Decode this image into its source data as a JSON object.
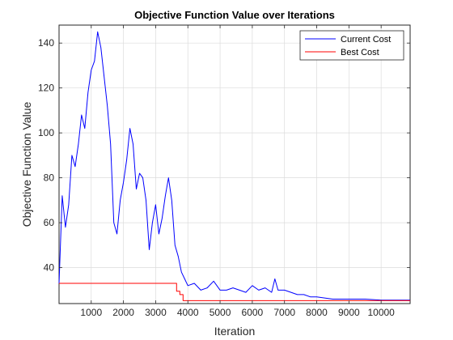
{
  "chart_data": {
    "type": "line",
    "title": "Objective Function Value over Iterations",
    "xlabel": "Iteration",
    "ylabel": "Objective Function Value",
    "xlim": [
      1,
      10900
    ],
    "ylim": [
      24,
      148
    ],
    "xticks": [
      1000,
      2000,
      3000,
      4000,
      5000,
      6000,
      7000,
      8000,
      9000,
      10000
    ],
    "yticks": [
      40,
      60,
      80,
      100,
      120,
      140
    ],
    "xtick_labels": [
      "1000",
      "2000",
      "3000",
      "4000",
      "5000",
      "6000",
      "7000",
      "8000",
      "9000",
      "10000"
    ],
    "ytick_labels": [
      "40",
      "60",
      "80",
      "100",
      "120",
      "140"
    ],
    "grid": true,
    "legend_position": "top-right",
    "colors": {
      "current": "#0000ff",
      "best": "#ff0000",
      "grid": "#dcdcdc",
      "axis": "#262626"
    },
    "series": [
      {
        "name": "Current Cost",
        "color": "#0000ff",
        "x": [
          1,
          100,
          200,
          300,
          400,
          500,
          600,
          700,
          800,
          900,
          1000,
          1100,
          1200,
          1300,
          1400,
          1500,
          1600,
          1700,
          1800,
          1900,
          2000,
          2100,
          2200,
          2300,
          2400,
          2500,
          2600,
          2700,
          2800,
          2900,
          3000,
          3100,
          3200,
          3300,
          3400,
          3500,
          3600,
          3700,
          3800,
          3900,
          4000,
          4200,
          4400,
          4600,
          4800,
          5000,
          5200,
          5400,
          5600,
          5800,
          6000,
          6200,
          6400,
          6600,
          6700,
          6800,
          7000,
          7200,
          7400,
          7600,
          7800,
          8000,
          8500,
          9000,
          9500,
          10000,
          10500,
          10900
        ],
        "y": [
          33,
          72,
          58,
          68,
          90,
          85,
          95,
          108,
          102,
          118,
          128,
          132,
          145,
          138,
          125,
          112,
          95,
          60,
          55,
          70,
          78,
          88,
          102,
          95,
          75,
          82,
          80,
          70,
          48,
          60,
          68,
          55,
          62,
          72,
          80,
          70,
          50,
          45,
          38,
          35,
          32,
          33,
          30,
          31,
          34,
          30,
          30,
          31,
          30,
          29,
          32,
          30,
          31,
          29,
          35,
          30,
          30,
          29,
          28,
          28,
          27,
          27,
          26,
          26,
          26,
          25.5,
          25.5,
          25.5
        ]
      },
      {
        "name": "Best Cost",
        "color": "#ff0000",
        "x": [
          1,
          3650,
          3650,
          3750,
          3750,
          3850,
          3850,
          10900
        ],
        "y": [
          33,
          33,
          29.5,
          29.5,
          28,
          28,
          25.3,
          25.3
        ]
      }
    ]
  }
}
